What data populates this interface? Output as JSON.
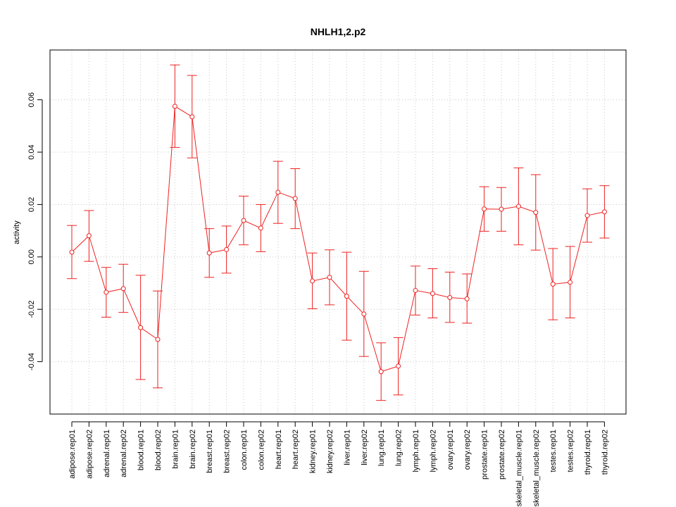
{
  "chart_data": {
    "type": "line",
    "title": "NHLH1,2.p2",
    "xlabel": "",
    "ylabel": "activity",
    "ylim": [
      -0.06,
      0.079
    ],
    "yticks": [
      "-0.04",
      "-0.02",
      "0.00",
      "0.02",
      "0.04",
      "0.06"
    ],
    "ytick_values": [
      -0.04,
      -0.02,
      0.0,
      0.02,
      0.04,
      0.06
    ],
    "grid": true,
    "line_color": "#ee2222",
    "grid_color": "#c8c8c8",
    "categories": [
      "adipose.rep01",
      "adipose.rep02",
      "adrenal.rep01",
      "adrenal.rep02",
      "blood.rep01",
      "blood.rep02",
      "brain.rep01",
      "brain.rep02",
      "breast.rep01",
      "breast.rep02",
      "colon.rep01",
      "colon.rep02",
      "heart.rep01",
      "heart.rep02",
      "kidney.rep01",
      "kidney.rep02",
      "liver.rep01",
      "liver.rep02",
      "lung.rep01",
      "lung.rep02",
      "lymph.rep01",
      "lymph.rep02",
      "ovary.rep01",
      "ovary.rep02",
      "prostate.rep01",
      "prostate.rep02",
      "skeletal_muscle.rep01",
      "skeletal_muscle.rep02",
      "testes.rep01",
      "testes.rep02",
      "thyroid.rep01",
      "thyroid.rep02"
    ],
    "values": [
      0.0018,
      0.0081,
      -0.0135,
      -0.0121,
      -0.027,
      -0.0315,
      0.0575,
      0.0535,
      0.0015,
      0.0028,
      0.0139,
      0.011,
      0.0247,
      0.0223,
      -0.0092,
      -0.0078,
      -0.015,
      -0.0218,
      -0.0438,
      -0.0417,
      -0.0128,
      -0.014,
      -0.0155,
      -0.016,
      0.0183,
      0.0182,
      0.0193,
      0.017,
      -0.0104,
      -0.0097,
      0.0158,
      0.0172
    ],
    "upper": [
      0.012,
      0.0177,
      -0.004,
      -0.0028,
      -0.007,
      -0.013,
      0.0733,
      0.0693,
      0.0108,
      0.0118,
      0.0232,
      0.02,
      0.0365,
      0.0337,
      0.0015,
      0.0027,
      0.0018,
      -0.0055,
      -0.0328,
      -0.0308,
      -0.0035,
      -0.0045,
      -0.0058,
      -0.0065,
      0.0268,
      0.0265,
      0.034,
      0.0314,
      0.0032,
      0.004,
      0.026,
      0.0272
    ],
    "lower": [
      -0.0083,
      -0.0017,
      -0.023,
      -0.0212,
      -0.0468,
      -0.05,
      0.0418,
      0.0378,
      -0.0078,
      -0.0062,
      0.0046,
      0.002,
      0.0128,
      0.0108,
      -0.0198,
      -0.0183,
      -0.0318,
      -0.038,
      -0.0548,
      -0.0527,
      -0.0222,
      -0.0233,
      -0.025,
      -0.0253,
      0.0098,
      0.0098,
      0.0046,
      0.0026,
      -0.024,
      -0.0233,
      0.0056,
      0.0072
    ]
  }
}
